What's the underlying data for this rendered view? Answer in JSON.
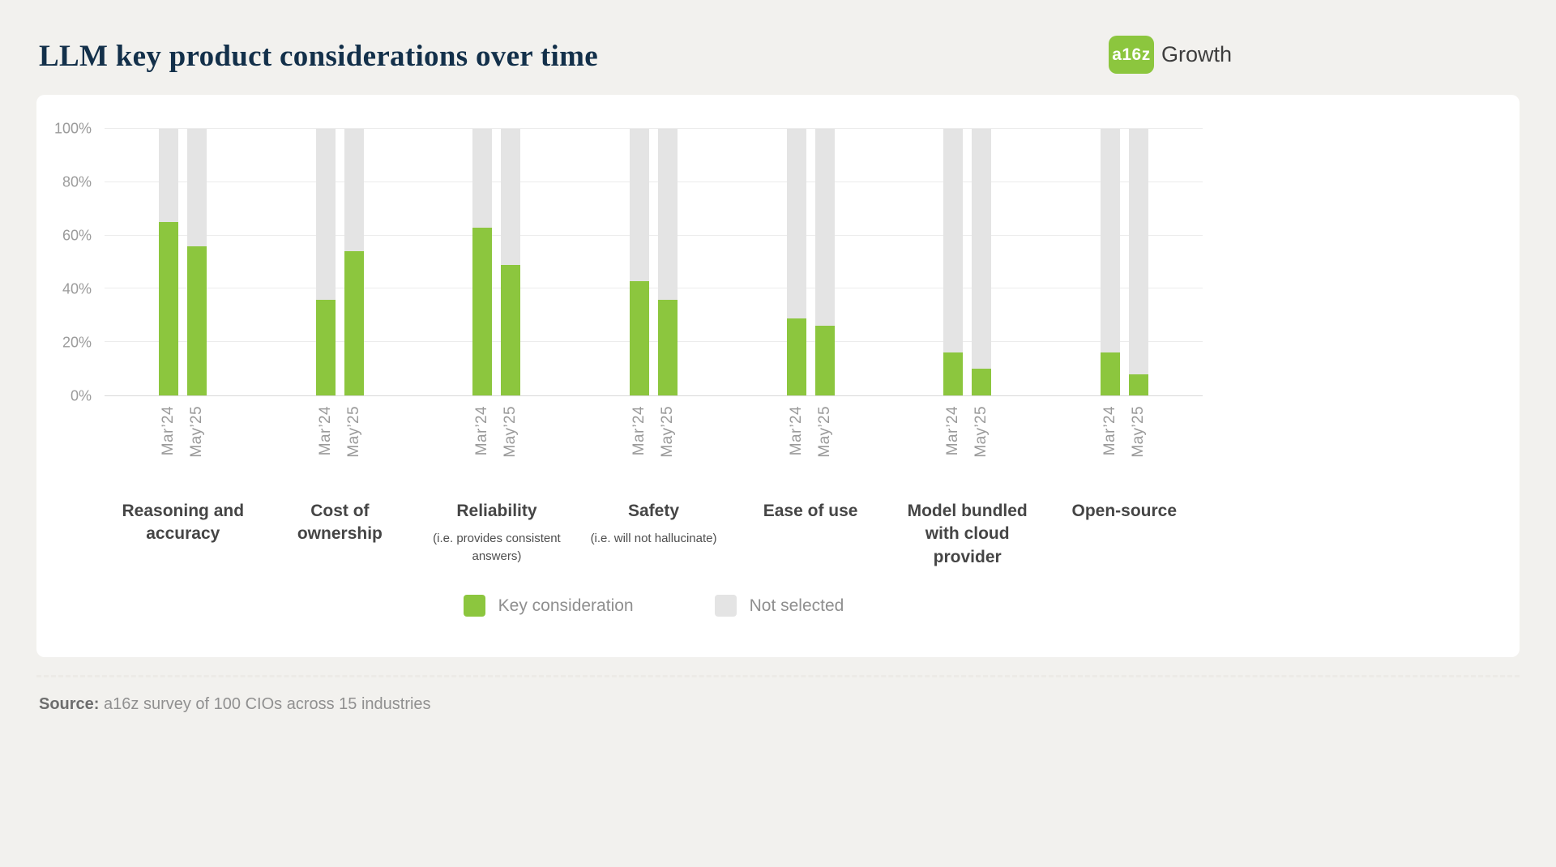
{
  "header": {
    "title": "LLM key product considerations over time",
    "logo": {
      "badge": "a16z",
      "suffix": "Growth"
    }
  },
  "chart_data": {
    "type": "bar",
    "title": "LLM key product considerations over time",
    "ylabel": "",
    "xlabel": "",
    "ylim": [
      0,
      100
    ],
    "grid": true,
    "legend_position": "bottom",
    "yticks": [
      {
        "value": 0,
        "label": "0%"
      },
      {
        "value": 20,
        "label": "20%"
      },
      {
        "value": 40,
        "label": "40%"
      },
      {
        "value": 60,
        "label": "60%"
      },
      {
        "value": 80,
        "label": "80%"
      },
      {
        "value": 100,
        "label": "100%"
      }
    ],
    "x_groups": [
      "Mar’24",
      "May’25"
    ],
    "value_unit": "%",
    "note": "Green = Key consideration share; gray fills remainder to 100% (Not selected)",
    "categories": [
      {
        "label": "Reasoning and accuracy",
        "sub": "",
        "values": [
          65,
          56
        ]
      },
      {
        "label": "Cost of ownership",
        "sub": "",
        "values": [
          36,
          54
        ]
      },
      {
        "label": "Reliability",
        "sub": "(i.e. provides consistent answers)",
        "values": [
          63,
          49
        ]
      },
      {
        "label": "Safety",
        "sub": "(i.e. will not hallucinate)",
        "values": [
          43,
          36
        ]
      },
      {
        "label": "Ease of use",
        "sub": "",
        "values": [
          29,
          26
        ]
      },
      {
        "label": "Model bundled with cloud provider",
        "sub": "",
        "values": [
          16,
          10
        ]
      },
      {
        "label": "Open-source",
        "sub": "",
        "values": [
          16,
          8
        ]
      }
    ],
    "legend": [
      {
        "label": "Key consideration",
        "color": "#8CC63E"
      },
      {
        "label": "Not selected",
        "color": "#E4E4E4"
      }
    ]
  },
  "footer": {
    "source_label": "Source:",
    "source_text": " a16z survey of 100 CIOs across 15 industries"
  }
}
